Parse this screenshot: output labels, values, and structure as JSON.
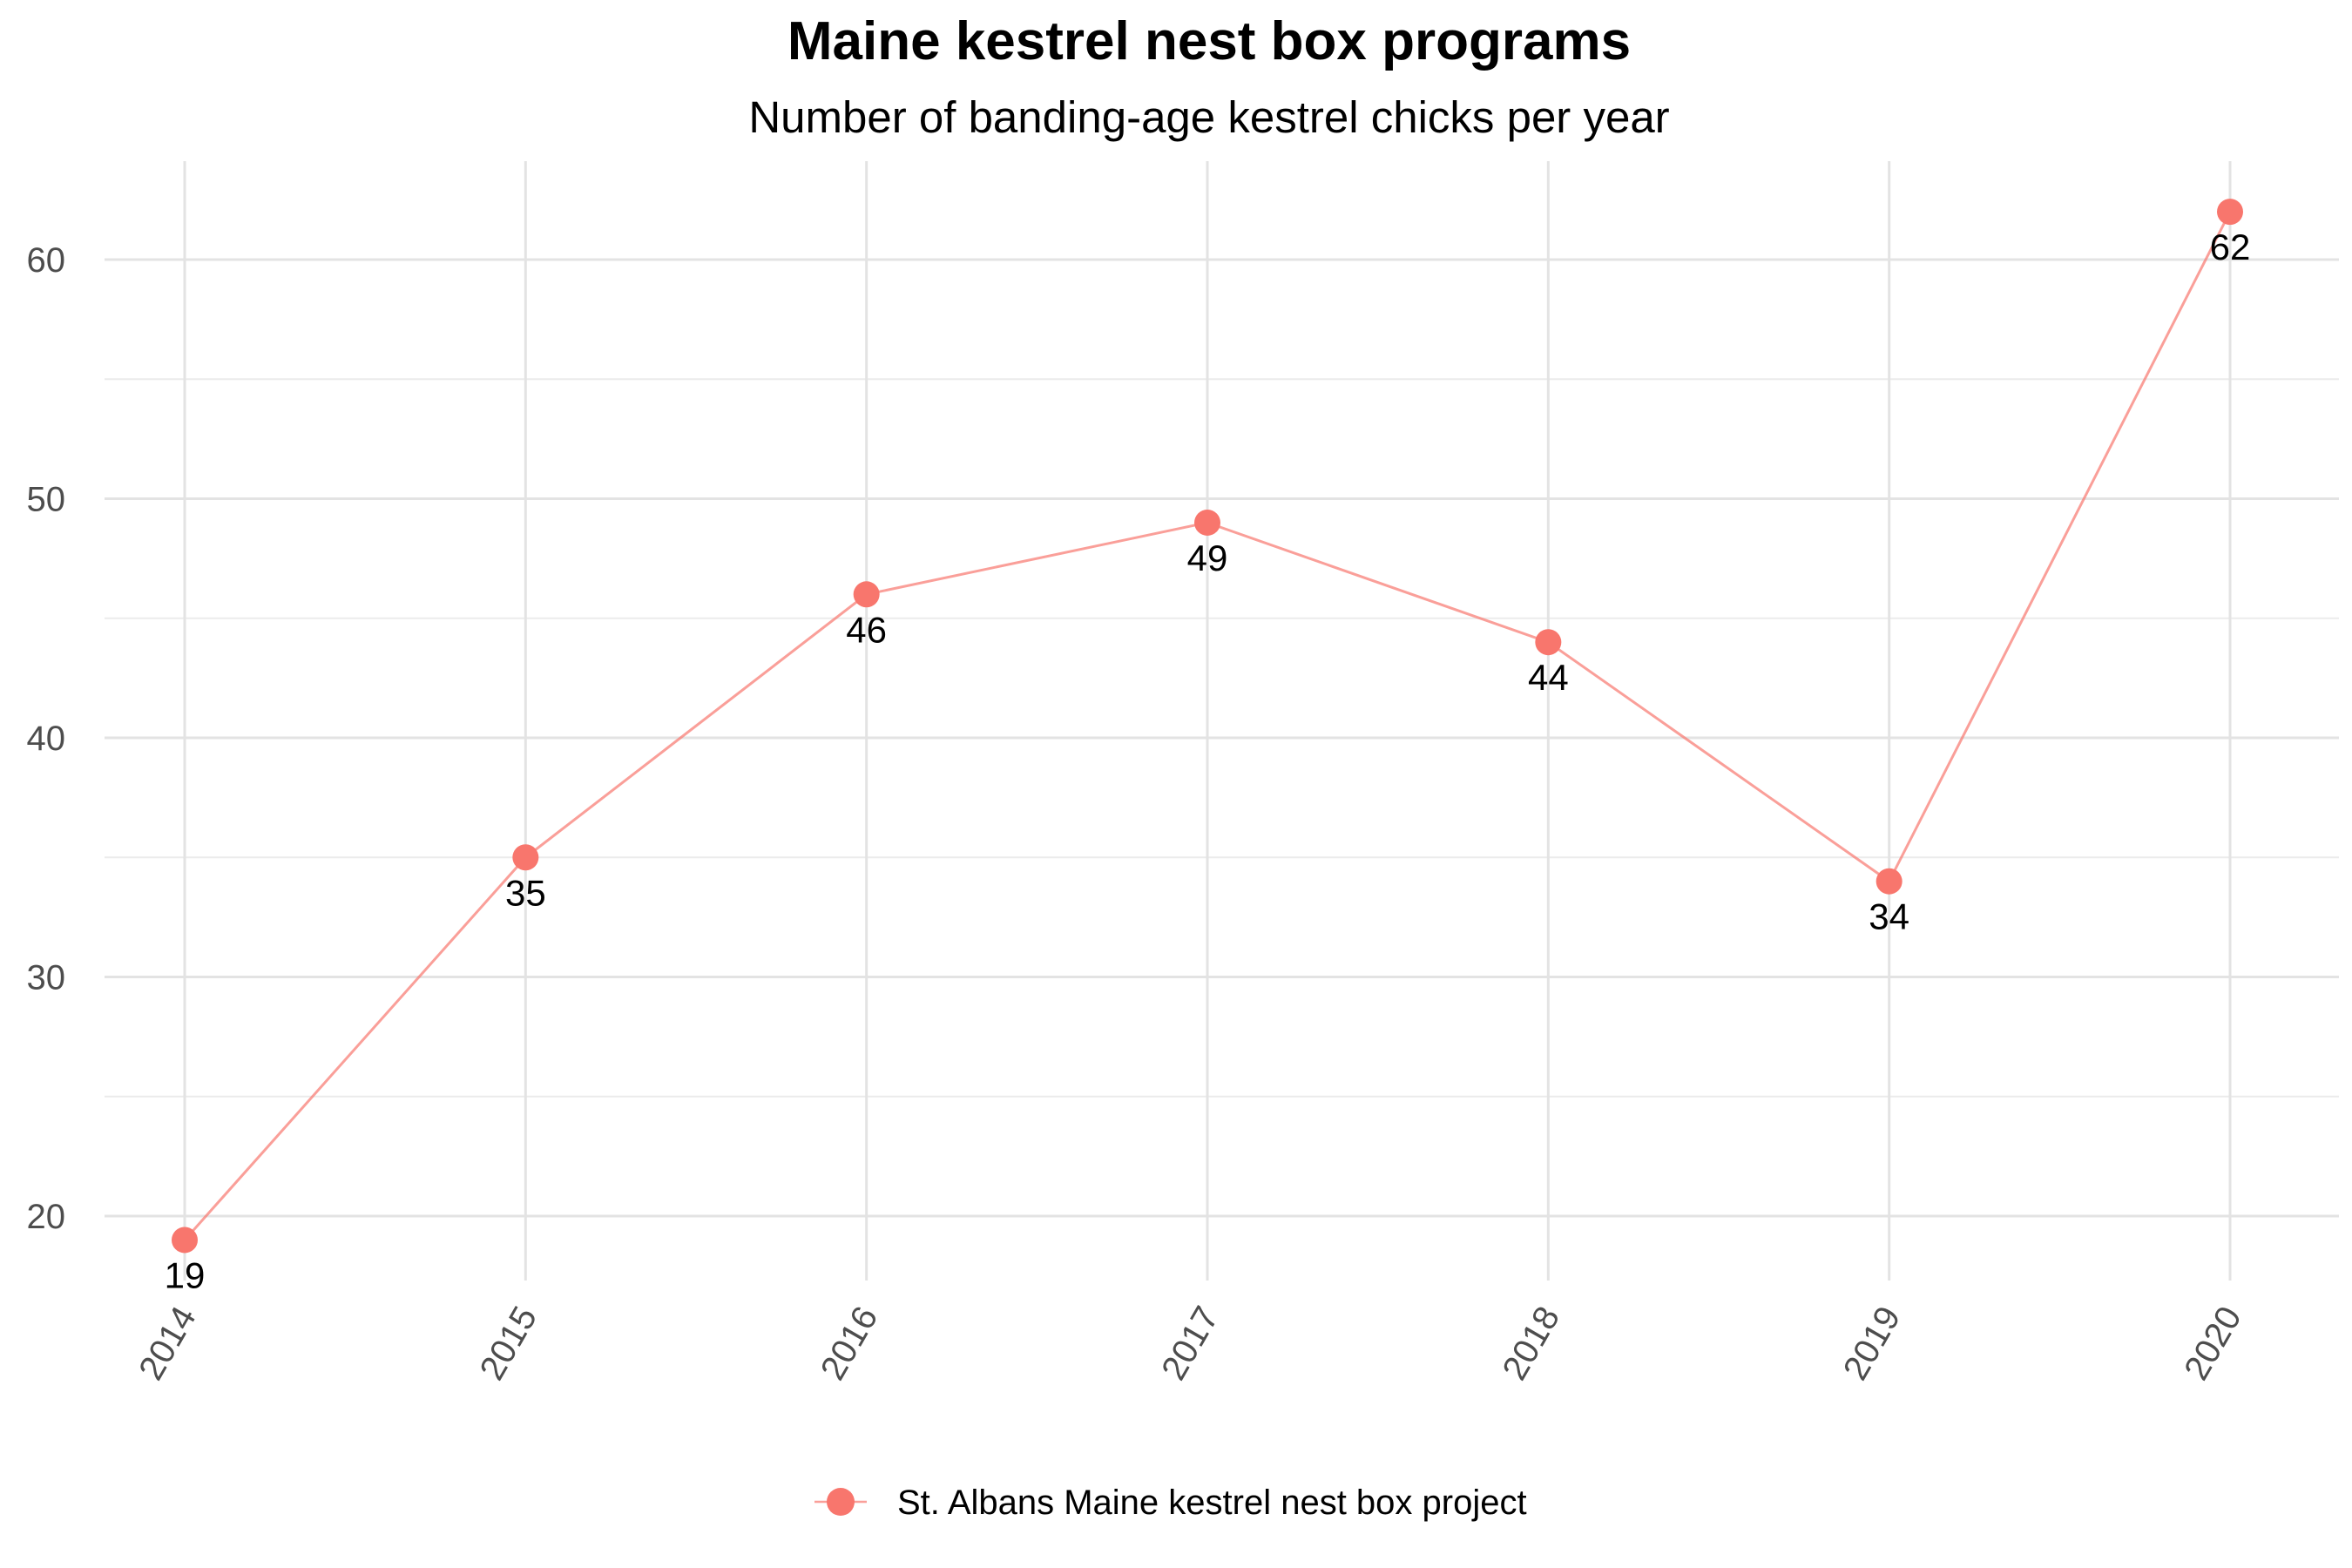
{
  "chart_data": {
    "type": "line",
    "title": "Maine kestrel nest box programs",
    "subtitle": "Number of banding-age kestrel chicks per year",
    "xlabel": "",
    "ylabel": "",
    "x": [
      "2014",
      "2015",
      "2016",
      "2017",
      "2018",
      "2019",
      "2020"
    ],
    "series": [
      {
        "name": "St. Albans Maine kestrel nest box project",
        "values": [
          19,
          35,
          46,
          49,
          44,
          34,
          62
        ],
        "color": "#F8766D"
      }
    ],
    "data_labels": [
      "19",
      "35",
      "46",
      "49",
      "44",
      "34",
      "62"
    ],
    "y_ticks": [
      20,
      30,
      40,
      50,
      60
    ],
    "ylim": [
      17,
      64
    ],
    "grid": true,
    "legend": "bottom",
    "x_tick_rotation": "-60 degrees"
  }
}
